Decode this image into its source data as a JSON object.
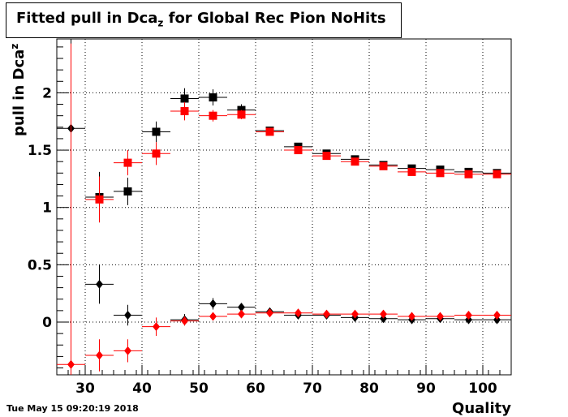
{
  "title": {
    "main": "Fitted pull in Dca",
    "subscript": "z",
    "rest": " for Global Rec Pion NoHits"
  },
  "footer": {
    "timestamp": "Tue May 15 09:20:19 2018"
  },
  "chart_data": {
    "type": "scatter",
    "title": "Fitted pull in Dcaz for Global Rec Pion NoHits",
    "xlabel": "Quality",
    "ylabel": "pull in Dca",
    "ylabel_subscript": "z",
    "xlim": [
      25,
      105
    ],
    "ylim": [
      -0.46,
      2.47
    ],
    "xticks": [
      30,
      40,
      50,
      60,
      70,
      80,
      90,
      100
    ],
    "yticks": [
      0,
      0.5,
      1,
      1.5,
      2
    ],
    "ytick_labels": [
      "0",
      "0.5",
      "1",
      "1.5",
      "2"
    ],
    "grid": true,
    "x_bin_halfwidth": 2.5,
    "series": [
      {
        "color": "#000000",
        "marker": "square",
        "x": [
          32.5,
          37.5,
          42.5,
          47.5,
          52.5,
          57.5,
          62.5,
          67.5,
          72.5,
          77.5,
          82.5,
          87.5,
          92.5,
          97.5,
          102.5
        ],
        "y": [
          1.09,
          1.14,
          1.66,
          1.95,
          1.96,
          1.85,
          1.67,
          1.53,
          1.47,
          1.42,
          1.37,
          1.34,
          1.33,
          1.31,
          1.3
        ],
        "yerr": [
          0.22,
          0.12,
          0.09,
          0.09,
          0.07,
          0.05,
          0.02,
          0.02,
          0.02,
          0.01,
          0.01,
          0.01,
          0.01,
          0.01,
          0.01
        ]
      },
      {
        "color": "#ff0000",
        "marker": "square",
        "x": [
          32.5,
          37.5,
          42.5,
          47.5,
          52.5,
          57.5,
          62.5,
          67.5,
          72.5,
          77.5,
          82.5,
          87.5,
          92.5,
          97.5,
          102.5
        ],
        "y": [
          1.07,
          1.39,
          1.47,
          1.84,
          1.8,
          1.81,
          1.66,
          1.5,
          1.45,
          1.4,
          1.36,
          1.31,
          1.3,
          1.29,
          1.29
        ],
        "yerr": [
          0.2,
          0.11,
          0.1,
          0.08,
          0.05,
          0.04,
          0.02,
          0.02,
          0.02,
          0.01,
          0.01,
          0.01,
          0.01,
          0.01,
          0.01
        ]
      },
      {
        "color": "#000000",
        "marker": "diamond",
        "x": [
          27.5,
          32.5,
          37.5,
          47.5,
          52.5,
          57.5,
          62.5,
          67.5,
          72.5,
          77.5,
          82.5,
          87.5,
          92.5,
          97.5,
          102.5
        ],
        "y": [
          1.69,
          0.33,
          0.06,
          0.02,
          0.16,
          0.13,
          0.09,
          0.06,
          0.06,
          0.04,
          0.03,
          0.02,
          0.03,
          0.02,
          0.02
        ],
        "yerr": [
          2.2,
          0.17,
          0.09,
          0.05,
          0.05,
          0.03,
          0.02,
          0.02,
          0.01,
          0.01,
          0.01,
          0.01,
          0.01,
          0.01,
          0.01
        ]
      },
      {
        "color": "#ff0000",
        "marker": "diamond",
        "x": [
          27.5,
          32.5,
          37.5,
          42.5,
          47.5,
          52.5,
          57.5,
          62.5,
          67.5,
          72.5,
          77.5,
          82.5,
          87.5,
          92.5,
          97.5,
          102.5
        ],
        "y": [
          -0.37,
          -0.29,
          -0.25,
          -0.04,
          0.01,
          0.05,
          0.07,
          0.08,
          0.08,
          0.07,
          0.07,
          0.07,
          0.05,
          0.05,
          0.06,
          0.06
        ],
        "yerr": [
          2.8,
          0.14,
          0.1,
          0.08,
          0.04,
          0.03,
          0.02,
          0.02,
          0.02,
          0.01,
          0.01,
          0.01,
          0.01,
          0.01,
          0.01,
          0.01
        ]
      }
    ]
  }
}
